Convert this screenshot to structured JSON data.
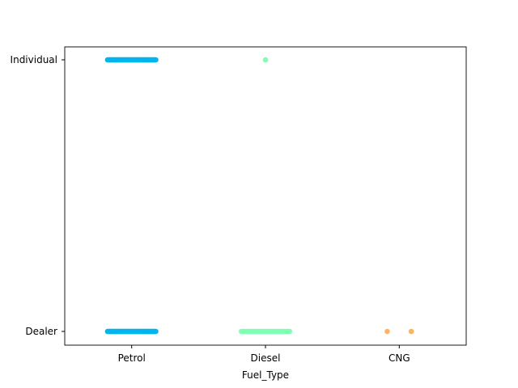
{
  "chart_data": {
    "type": "scatter",
    "subtype": "categorical strip plot",
    "title": "",
    "xlabel": "Fuel_Type",
    "ylabel": "",
    "x_categories": [
      "Petrol",
      "Diesel",
      "CNG"
    ],
    "y_categories": [
      "Dealer",
      "Individual"
    ],
    "series": [
      {
        "name": "Petrol",
        "color": "#00b5eb",
        "points": [
          {
            "y": "Individual",
            "jitter_min": -0.18,
            "jitter_max": 0.18,
            "count": 60
          },
          {
            "y": "Dealer",
            "jitter_min": -0.18,
            "jitter_max": 0.18,
            "count": 60
          }
        ]
      },
      {
        "name": "Diesel",
        "color": "#80ffb4",
        "points": [
          {
            "y": "Individual",
            "jitter_min": 0.0,
            "jitter_max": 0.0,
            "count": 1
          },
          {
            "y": "Dealer",
            "jitter_min": -0.18,
            "jitter_max": 0.18,
            "count": 40
          }
        ]
      },
      {
        "name": "CNG",
        "color": "#ffb360",
        "points": [
          {
            "y": "Dealer",
            "jitter_min": -0.09,
            "jitter_max": -0.09,
            "count": 1
          },
          {
            "y": "Dealer",
            "jitter_min": 0.09,
            "jitter_max": 0.09,
            "count": 1
          }
        ]
      }
    ]
  }
}
